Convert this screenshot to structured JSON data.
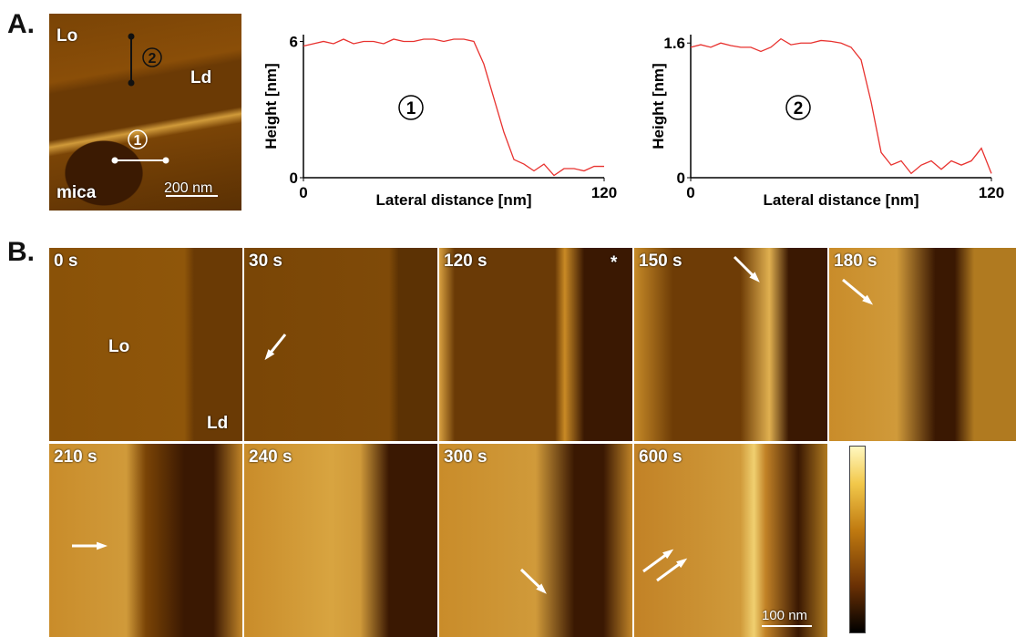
{
  "panel_a": {
    "label": "A.",
    "image_labels": {
      "lo": "Lo",
      "ld": "Ld",
      "mica": "mica",
      "scale": "200 nm",
      "marker_1": "1",
      "marker_2": "2"
    }
  },
  "chart_data": [
    {
      "type": "line",
      "ylabel": "Height [nm]",
      "xlabel": "Lateral distance [nm]",
      "annotation": "1",
      "color": "#e8322f",
      "x": [
        0,
        4,
        8,
        12,
        16,
        20,
        24,
        28,
        32,
        36,
        40,
        44,
        48,
        52,
        56,
        60,
        64,
        68,
        72,
        76,
        80,
        84,
        88,
        92,
        96,
        100,
        104,
        108,
        112,
        116,
        120
      ],
      "values": [
        5.8,
        5.9,
        6.0,
        5.9,
        6.1,
        5.9,
        6.0,
        6.0,
        5.9,
        6.1,
        6.0,
        6.0,
        6.1,
        6.1,
        6.0,
        6.1,
        6.1,
        6.0,
        5.0,
        3.5,
        2.0,
        0.8,
        0.6,
        0.3,
        0.6,
        0.1,
        0.4,
        0.4,
        0.3,
        0.5,
        0.5
      ],
      "xlim": [
        0,
        120
      ],
      "xticks": [
        0,
        120
      ],
      "ylim": [
        0,
        6.3
      ],
      "yticks": [
        0,
        6
      ]
    },
    {
      "type": "line",
      "ylabel": "Height [nm]",
      "xlabel": "Lateral distance [nm]",
      "annotation": "2",
      "color": "#e8322f",
      "x": [
        0,
        4,
        8,
        12,
        16,
        20,
        24,
        28,
        32,
        36,
        40,
        44,
        48,
        52,
        56,
        60,
        64,
        68,
        72,
        76,
        80,
        84,
        88,
        92,
        96,
        100,
        104,
        108,
        112,
        116,
        120
      ],
      "values": [
        1.55,
        1.58,
        1.55,
        1.6,
        1.57,
        1.55,
        1.55,
        1.5,
        1.55,
        1.65,
        1.58,
        1.6,
        1.6,
        1.63,
        1.62,
        1.6,
        1.55,
        1.4,
        0.9,
        0.3,
        0.15,
        0.2,
        0.05,
        0.15,
        0.2,
        0.1,
        0.2,
        0.15,
        0.2,
        0.35,
        0.05
      ],
      "xlim": [
        0,
        120
      ],
      "xticks": [
        0,
        120
      ],
      "ylim": [
        0,
        1.7
      ],
      "yticks": [
        0,
        1.6
      ]
    }
  ],
  "panel_b": {
    "label": "B.",
    "frames": [
      "0 s",
      "30 s",
      "120 s",
      "150 s",
      "180 s",
      "210 s",
      "240 s",
      "300 s",
      "600 s"
    ],
    "labels": {
      "lo": "Lo",
      "ld": "Ld",
      "star": "*",
      "scale": "100 nm"
    }
  }
}
